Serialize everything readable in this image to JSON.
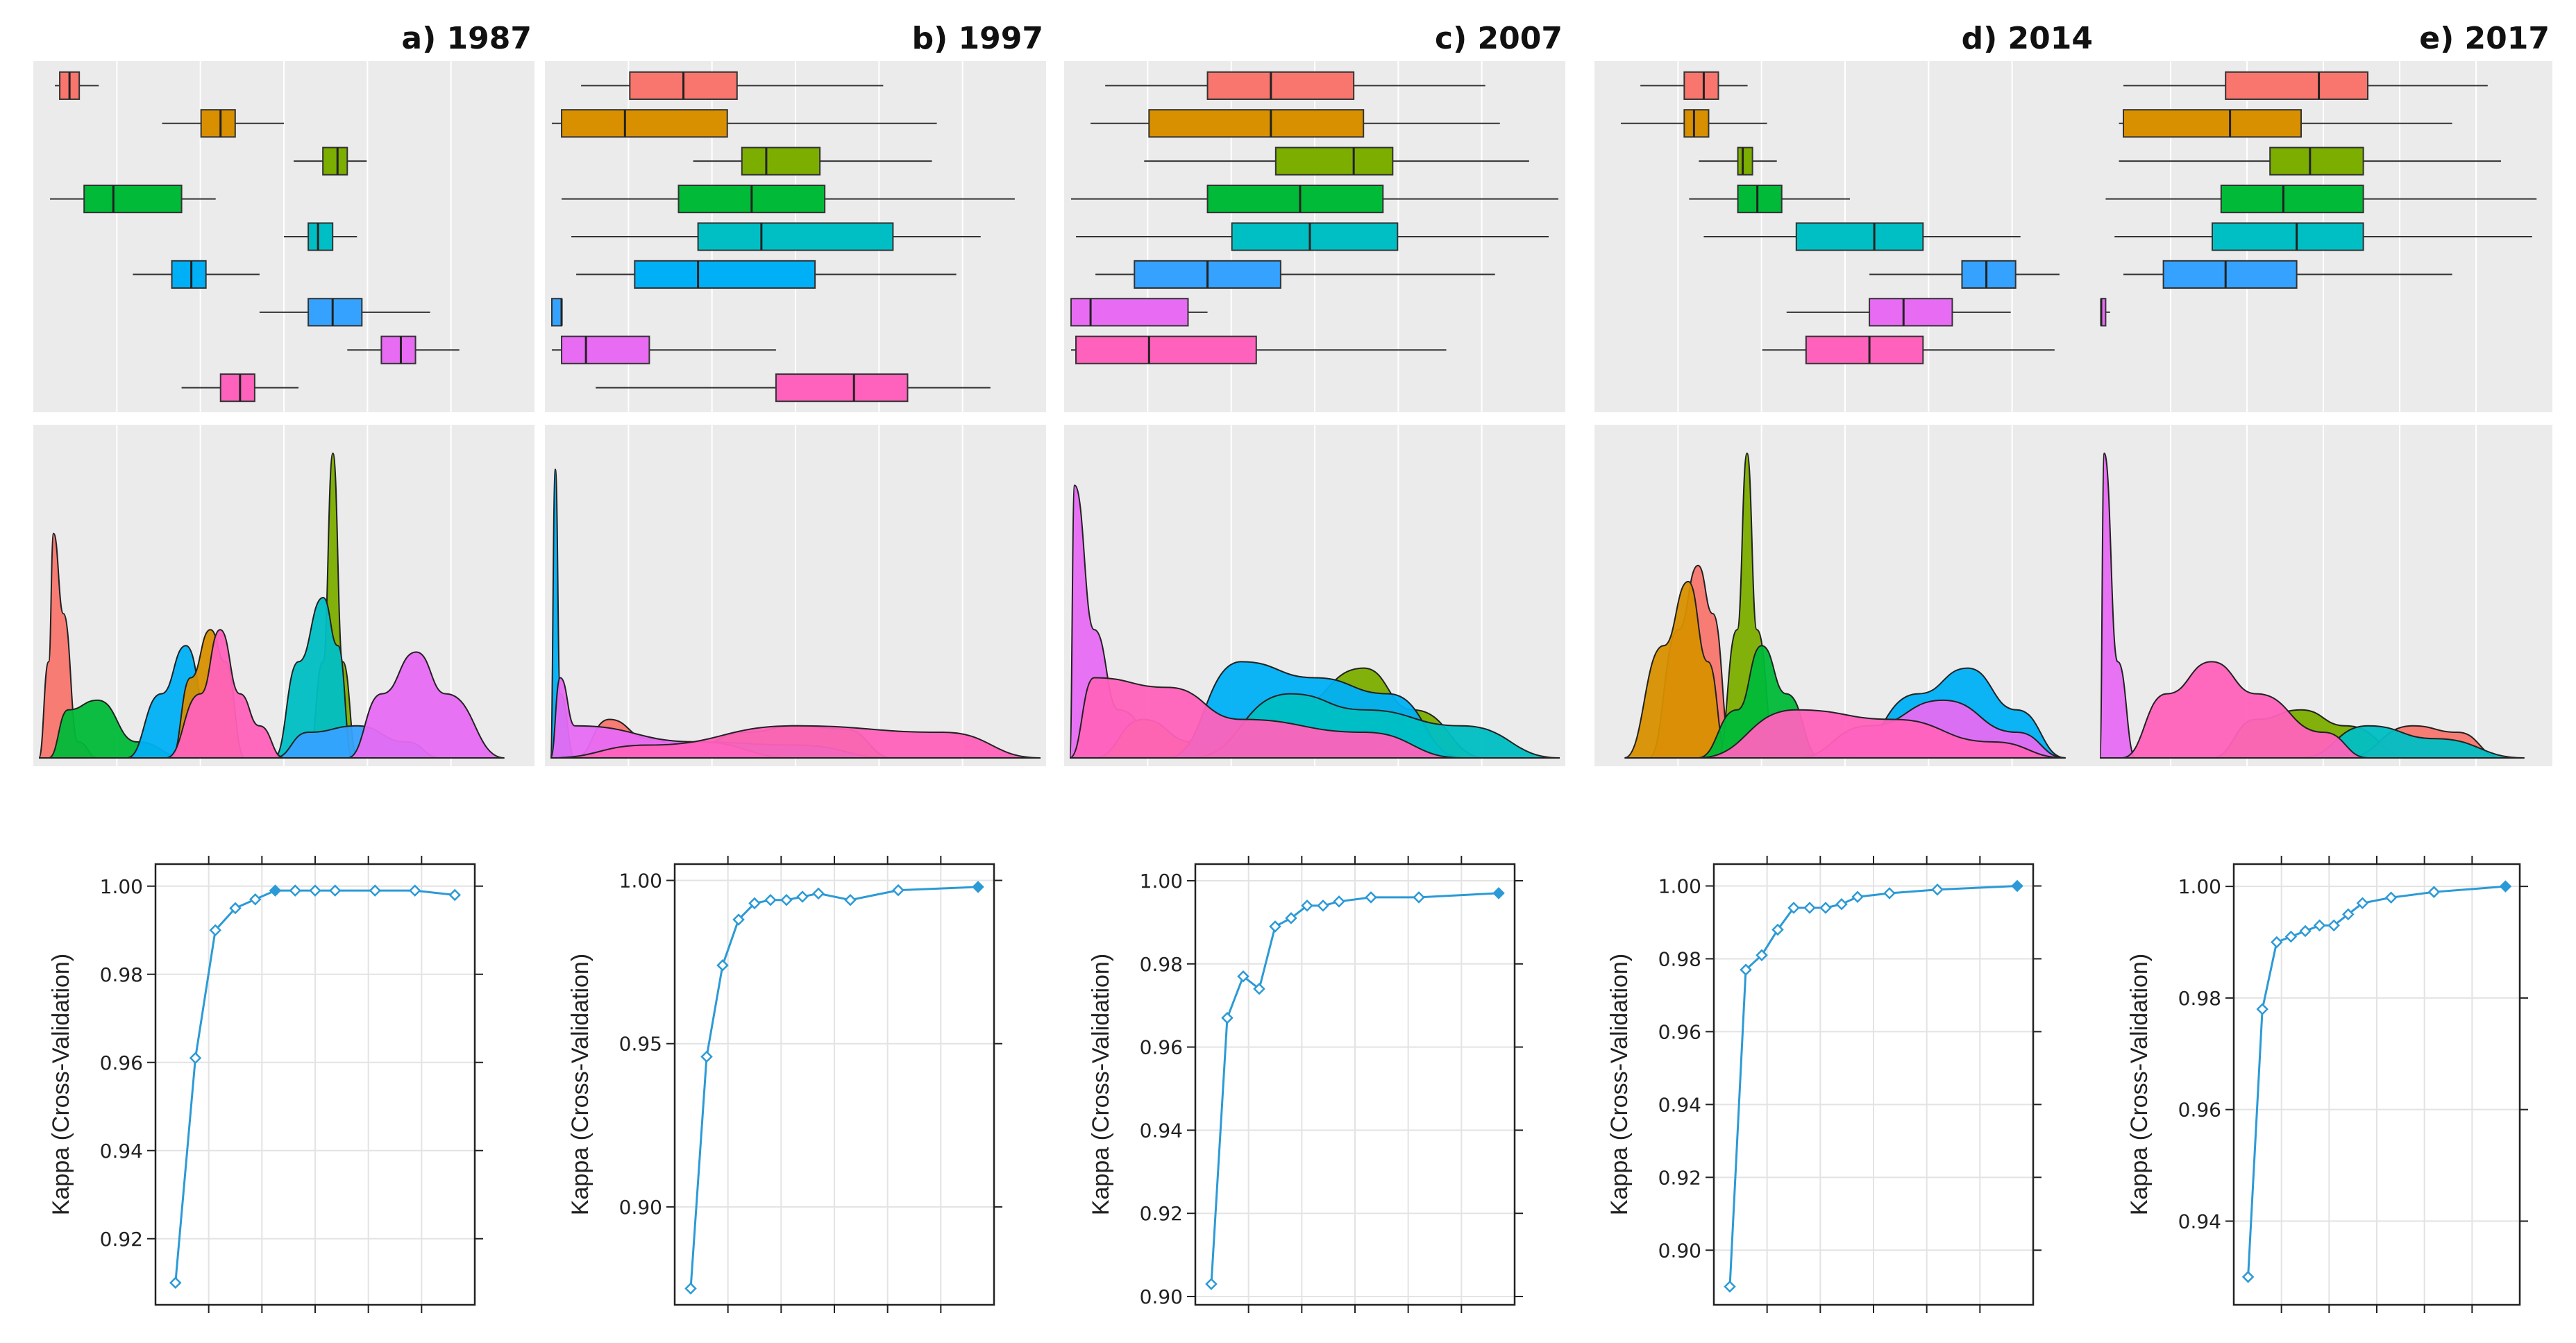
{
  "colors": {
    "panel_bg": "#EBEBEB",
    "grid": "#FFFFFF",
    "line": "#2C9AD6",
    "classes": [
      "#F8766D",
      "#D89000",
      "#7CAE00",
      "#00BA38",
      "#00BFC4",
      "#00B0F6",
      "#35A2FF",
      "#E76BF3",
      "#FF62BC"
    ]
  },
  "chart_data": [
    {
      "panel": "a",
      "title": "a) 1987",
      "type": "line",
      "xlabel": "",
      "ylabel": "Kappa (Cross-Validation)",
      "ylim": [
        0.905,
        1.005
      ],
      "yticks": [
        0.92,
        0.94,
        0.96,
        0.98,
        1.0
      ],
      "ytick_labels": [
        "0.92",
        "0.94",
        "0.96",
        "0.98",
        "1.00"
      ],
      "x": [
        2,
        3,
        4,
        5,
        6,
        7,
        8,
        9,
        10,
        12,
        14,
        16
      ],
      "values": [
        0.91,
        0.961,
        0.99,
        0.995,
        0.997,
        0.999,
        0.999,
        0.999,
        0.999,
        0.999,
        0.999,
        0.998
      ],
      "best_index": 5,
      "boxplot_classes": 9,
      "density_classes": 9
    },
    {
      "panel": "b",
      "title": "b) 1997",
      "type": "line",
      "xlabel": "",
      "ylabel": "Kappa (Cross-Validation)",
      "ylim": [
        0.87,
        1.005
      ],
      "yticks": [
        0.9,
        0.95,
        1.0
      ],
      "ytick_labels": [
        "0.90",
        "0.95",
        "1.00"
      ],
      "x": [
        2,
        3,
        4,
        5,
        6,
        7,
        8,
        9,
        10,
        12,
        15,
        20
      ],
      "values": [
        0.875,
        0.946,
        0.974,
        0.988,
        0.993,
        0.994,
        0.994,
        0.995,
        0.996,
        0.994,
        0.997,
        0.998
      ],
      "best_index": 11,
      "boxplot_classes": 9,
      "density_classes": 9
    },
    {
      "panel": "c",
      "title": "c) 2007",
      "type": "line",
      "xlabel": "",
      "ylabel": "Kappa (Cross-Validation)",
      "ylim": [
        0.898,
        1.004
      ],
      "yticks": [
        0.9,
        0.92,
        0.94,
        0.96,
        0.98,
        1.0
      ],
      "ytick_labels": [
        "0.90",
        "0.92",
        "0.94",
        "0.96",
        "0.98",
        "1.00"
      ],
      "x": [
        2,
        3,
        4,
        5,
        6,
        7,
        8,
        9,
        10,
        12,
        15,
        20
      ],
      "values": [
        0.903,
        0.967,
        0.977,
        0.974,
        0.989,
        0.991,
        0.994,
        0.994,
        0.995,
        0.996,
        0.996,
        0.997
      ],
      "best_index": 11,
      "boxplot_classes": 9,
      "density_classes": 9
    },
    {
      "panel": "d",
      "title": "d) 2014",
      "type": "line",
      "xlabel": "",
      "ylabel": "Kappa (Cross-Validation)",
      "ylim": [
        0.885,
        1.006
      ],
      "yticks": [
        0.9,
        0.92,
        0.94,
        0.96,
        0.98,
        1.0
      ],
      "ytick_labels": [
        "0.90",
        "0.92",
        "0.94",
        "0.96",
        "0.98",
        "1.00"
      ],
      "x": [
        2,
        3,
        4,
        5,
        6,
        7,
        8,
        9,
        10,
        12,
        15,
        20
      ],
      "values": [
        0.89,
        0.977,
        0.981,
        0.988,
        0.994,
        0.994,
        0.994,
        0.995,
        0.997,
        0.998,
        0.999,
        1.0
      ],
      "best_index": 11,
      "boxplot_classes": 9,
      "density_classes": 9
    },
    {
      "panel": "e",
      "title": "e) 2017",
      "type": "line",
      "xlabel": "",
      "ylabel": "Kappa (Cross-Validation)",
      "ylim": [
        0.925,
        1.004
      ],
      "yticks": [
        0.94,
        0.96,
        0.98,
        1.0
      ],
      "ytick_labels": [
        "0.94",
        "0.96",
        "0.98",
        "1.00"
      ],
      "x": [
        2,
        3,
        4,
        5,
        6,
        7,
        8,
        9,
        10,
        12,
        15,
        20
      ],
      "values": [
        0.93,
        0.978,
        0.99,
        0.991,
        0.992,
        0.993,
        0.993,
        0.995,
        0.997,
        0.998,
        0.999,
        1.0
      ],
      "best_index": 11,
      "boxplot_classes": 9,
      "density_classes": 9
    }
  ]
}
